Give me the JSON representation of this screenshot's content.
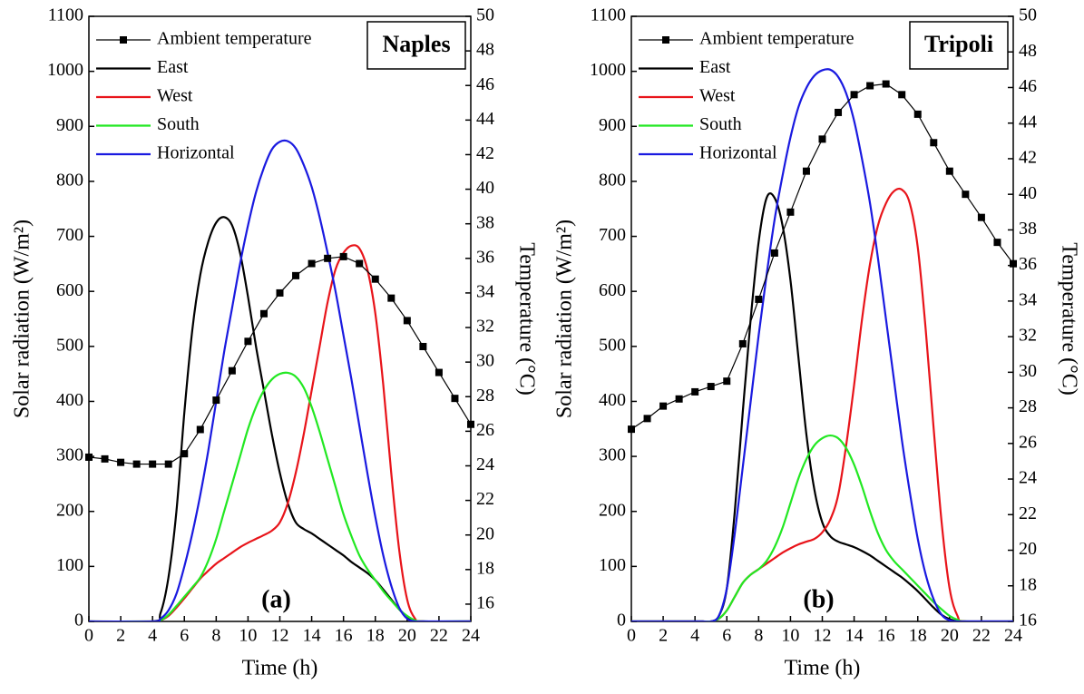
{
  "chart_data": [
    {
      "type": "line",
      "title": "Naples",
      "annotation": "(a)",
      "xlabel": "Time (h)",
      "ylabel": "Solar radiation (W/m²)",
      "y2label": "Temperature (°C)",
      "xlim": [
        0,
        24
      ],
      "xticks": [
        0,
        2,
        4,
        6,
        8,
        10,
        12,
        14,
        16,
        18,
        20,
        22,
        24
      ],
      "ylim": [
        0,
        1100
      ],
      "yticks": [
        0,
        100,
        200,
        300,
        400,
        500,
        600,
        700,
        800,
        900,
        1000,
        1100
      ],
      "y2lim": [
        15,
        50
      ],
      "y2ticks": [
        16,
        18,
        20,
        22,
        24,
        26,
        28,
        30,
        32,
        34,
        36,
        38,
        40,
        42,
        44,
        46,
        48,
        50
      ],
      "legend": "upper left",
      "series": [
        {
          "name": "Ambient temperature",
          "color": "#000000",
          "axis": "y2",
          "marker": "square",
          "x": [
            0,
            1,
            2,
            3,
            4,
            5,
            6,
            7,
            8,
            9,
            10,
            11,
            12,
            13,
            14,
            15,
            16,
            17,
            18,
            19,
            20,
            21,
            22,
            23,
            24
          ],
          "values": [
            24.5,
            24.4,
            24.2,
            24.1,
            24.1,
            24.1,
            24.7,
            26.1,
            27.8,
            29.5,
            31.2,
            32.8,
            34.0,
            35.0,
            35.7,
            36.0,
            36.1,
            35.7,
            34.8,
            33.7,
            32.4,
            30.9,
            29.4,
            27.9,
            26.4
          ]
        },
        {
          "name": "East",
          "color": "#000000",
          "x": [
            0,
            4,
            4.5,
            5,
            5.5,
            6,
            6.5,
            7,
            7.5,
            8,
            8.5,
            9,
            9.5,
            10,
            10.5,
            11,
            11.5,
            12,
            12.5,
            13,
            13.5,
            14,
            14.5,
            15,
            15.5,
            16,
            16.5,
            17,
            17.5,
            18,
            18.5,
            19,
            19.5,
            20,
            20.5,
            21,
            24
          ],
          "values": [
            0,
            0,
            15,
            80,
            200,
            380,
            530,
            630,
            690,
            725,
            735,
            720,
            670,
            590,
            500,
            420,
            340,
            270,
            215,
            180,
            168,
            160,
            150,
            140,
            130,
            120,
            108,
            98,
            88,
            75,
            58,
            40,
            22,
            8,
            2,
            0,
            0
          ]
        },
        {
          "name": "West",
          "color": "#e8141a",
          "x": [
            0,
            4,
            4.5,
            5,
            5.5,
            6,
            6.5,
            7,
            7.5,
            8,
            8.5,
            9,
            9.5,
            10,
            10.5,
            11,
            11.5,
            12,
            12.5,
            13,
            13.5,
            14,
            14.5,
            15,
            15.5,
            16,
            16.5,
            17,
            17.5,
            18,
            18.5,
            19,
            19.5,
            20,
            20.5,
            21,
            24
          ],
          "values": [
            0,
            0,
            2,
            10,
            25,
            42,
            60,
            78,
            92,
            105,
            115,
            125,
            135,
            143,
            150,
            157,
            165,
            180,
            215,
            270,
            340,
            420,
            500,
            580,
            640,
            670,
            683,
            678,
            640,
            560,
            430,
            270,
            130,
            40,
            5,
            0,
            0
          ]
        },
        {
          "name": "South",
          "color": "#22e822",
          "x": [
            0,
            4,
            4.5,
            5,
            5.5,
            6,
            6.5,
            7,
            7.5,
            8,
            8.5,
            9,
            9.5,
            10,
            10.5,
            11,
            11.5,
            12,
            12.5,
            13,
            13.5,
            14,
            14.5,
            15,
            15.5,
            16,
            16.5,
            17,
            17.5,
            18,
            18.5,
            19,
            19.5,
            20,
            20.5,
            21,
            24
          ],
          "values": [
            0,
            0,
            2,
            12,
            28,
            45,
            62,
            80,
            110,
            150,
            200,
            250,
            300,
            350,
            390,
            420,
            440,
            450,
            452,
            445,
            425,
            390,
            345,
            295,
            245,
            195,
            155,
            120,
            95,
            75,
            55,
            38,
            22,
            10,
            2,
            0,
            0
          ]
        },
        {
          "name": "Horizontal",
          "color": "#1a1ae0",
          "x": [
            0,
            4,
            4.5,
            5,
            5.5,
            6,
            6.5,
            7,
            7.5,
            8,
            8.5,
            9,
            9.5,
            10,
            10.5,
            11,
            11.5,
            12,
            12.5,
            13,
            13.5,
            14,
            14.5,
            15,
            15.5,
            16,
            16.5,
            17,
            17.5,
            18,
            18.5,
            19,
            19.5,
            20,
            20.5,
            21,
            24
          ],
          "values": [
            0,
            0,
            5,
            20,
            50,
            100,
            160,
            230,
            310,
            400,
            490,
            570,
            650,
            720,
            780,
            825,
            858,
            872,
            873,
            860,
            830,
            790,
            735,
            670,
            600,
            520,
            440,
            355,
            270,
            190,
            120,
            65,
            25,
            5,
            0,
            0,
            0
          ]
        }
      ]
    },
    {
      "type": "line",
      "title": "Tripoli",
      "annotation": "(b)",
      "xlabel": "Time (h)",
      "ylabel": "Solar radiation (W/m²)",
      "y2label": "Temperature (°C)",
      "xlim": [
        0,
        24
      ],
      "xticks": [
        0,
        2,
        4,
        6,
        8,
        10,
        12,
        14,
        16,
        18,
        20,
        22,
        24
      ],
      "ylim": [
        0,
        1100
      ],
      "yticks": [
        0,
        100,
        200,
        300,
        400,
        500,
        600,
        700,
        800,
        900,
        1000,
        1100
      ],
      "y2lim": [
        16,
        50
      ],
      "y2ticks": [
        16,
        18,
        20,
        22,
        24,
        26,
        28,
        30,
        32,
        34,
        36,
        38,
        40,
        42,
        44,
        46,
        48,
        50
      ],
      "legend": "upper left",
      "series": [
        {
          "name": "Ambient temperature",
          "color": "#000000",
          "axis": "y2",
          "marker": "square",
          "x": [
            0,
            1,
            2,
            3,
            4,
            5,
            6,
            7,
            8,
            9,
            10,
            11,
            12,
            13,
            14,
            15,
            16,
            17,
            18,
            19,
            20,
            21,
            22,
            23,
            24
          ],
          "values": [
            26.8,
            27.4,
            28.1,
            28.5,
            28.9,
            29.2,
            29.5,
            31.6,
            34.1,
            36.7,
            39.0,
            41.3,
            43.1,
            44.6,
            45.6,
            46.1,
            46.2,
            45.6,
            44.5,
            42.9,
            41.3,
            40.0,
            38.7,
            37.3,
            36.1
          ]
        },
        {
          "name": "East",
          "color": "#000000",
          "x": [
            0,
            4,
            4.5,
            5,
            5.5,
            6,
            6.5,
            7,
            7.5,
            8,
            8.5,
            9,
            9.5,
            10,
            10.5,
            11,
            11.5,
            12,
            12.5,
            13,
            13.5,
            14,
            14.5,
            15,
            15.5,
            16,
            16.5,
            17,
            17.5,
            18,
            18.5,
            19,
            19.5,
            20,
            20.5,
            21,
            24
          ],
          "values": [
            0,
            0,
            0,
            0,
            10,
            60,
            200,
            380,
            550,
            690,
            770,
            770,
            720,
            620,
            480,
            340,
            240,
            180,
            155,
            145,
            140,
            135,
            128,
            120,
            110,
            100,
            90,
            80,
            68,
            55,
            40,
            25,
            12,
            4,
            0,
            0,
            0
          ]
        },
        {
          "name": "West",
          "color": "#e8141a",
          "x": [
            0,
            4,
            4.5,
            5,
            5.5,
            6,
            6.5,
            7,
            7.5,
            8,
            8.5,
            9,
            9.5,
            10,
            10.5,
            11,
            11.5,
            12,
            12.5,
            13,
            13.5,
            14,
            14.5,
            15,
            15.5,
            16,
            16.5,
            17,
            17.5,
            18,
            18.5,
            19,
            19.5,
            20,
            20.5,
            21,
            24
          ],
          "values": [
            0,
            0,
            0,
            0,
            5,
            20,
            45,
            70,
            85,
            95,
            105,
            115,
            125,
            133,
            140,
            145,
            150,
            162,
            185,
            230,
            320,
            430,
            550,
            650,
            720,
            760,
            782,
            785,
            760,
            680,
            530,
            350,
            180,
            60,
            10,
            0,
            0
          ]
        },
        {
          "name": "South",
          "color": "#22e822",
          "x": [
            0,
            4,
            4.5,
            5,
            5.5,
            6,
            6.5,
            7,
            7.5,
            8,
            8.5,
            9,
            9.5,
            10,
            10.5,
            11,
            11.5,
            12,
            12.5,
            13,
            13.5,
            14,
            14.5,
            15,
            15.5,
            16,
            16.5,
            17,
            17.5,
            18,
            18.5,
            19,
            19.5,
            20,
            20.5,
            21,
            24
          ],
          "values": [
            0,
            0,
            0,
            0,
            5,
            20,
            45,
            70,
            85,
            95,
            110,
            135,
            170,
            215,
            260,
            295,
            320,
            333,
            338,
            333,
            315,
            285,
            245,
            200,
            160,
            130,
            110,
            95,
            80,
            65,
            50,
            35,
            22,
            10,
            3,
            0,
            0
          ]
        },
        {
          "name": "Horizontal",
          "color": "#1a1ae0",
          "x": [
            0,
            4,
            4.5,
            5,
            5.5,
            6,
            6.5,
            7,
            7.5,
            8,
            8.5,
            9,
            9.5,
            10,
            10.5,
            11,
            11.5,
            12,
            12.5,
            13,
            13.5,
            14,
            14.5,
            15,
            15.5,
            16,
            16.5,
            17,
            17.5,
            18,
            18.5,
            19,
            19.5,
            20,
            20.5,
            21,
            24
          ],
          "values": [
            0,
            0,
            0,
            0,
            10,
            60,
            160,
            280,
            400,
            520,
            630,
            730,
            810,
            880,
            935,
            970,
            992,
            1002,
            1003,
            990,
            960,
            910,
            840,
            760,
            660,
            550,
            440,
            330,
            235,
            150,
            85,
            40,
            12,
            2,
            0,
            0,
            0
          ]
        }
      ]
    }
  ]
}
